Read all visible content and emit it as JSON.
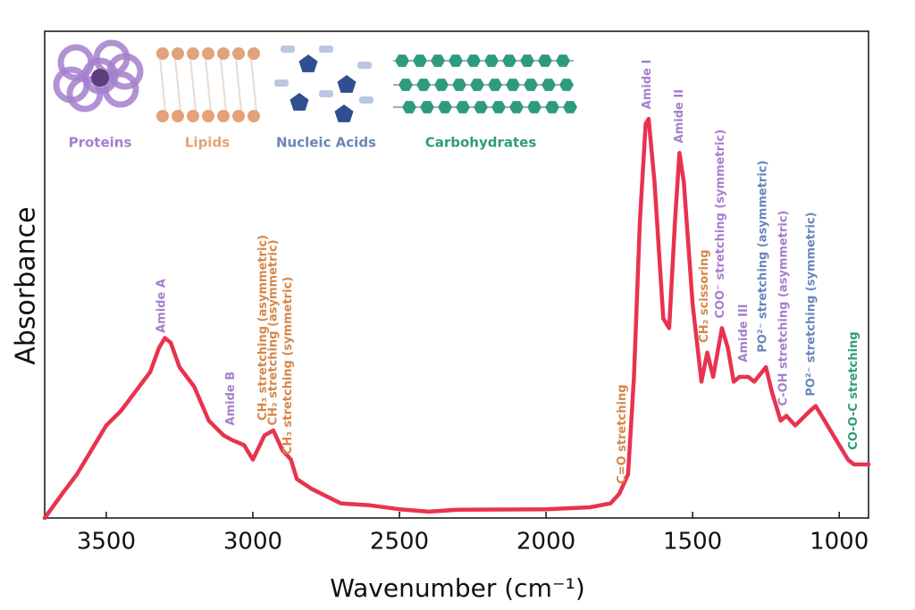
{
  "chart_data": {
    "type": "line",
    "x_label": "Wavenumber (cm⁻¹)",
    "y_label": "Absorbance",
    "xlim": [
      3710,
      900
    ],
    "ylim": [
      0,
      1
    ],
    "xticks": [
      3500,
      3000,
      2500,
      2000,
      1500,
      1000
    ],
    "x": [
      3710,
      3650,
      3600,
      3550,
      3500,
      3450,
      3400,
      3350,
      3320,
      3300,
      3280,
      3250,
      3200,
      3150,
      3100,
      3070,
      3030,
      3000,
      2960,
      2930,
      2900,
      2870,
      2850,
      2800,
      2700,
      2600,
      2500,
      2400,
      2300,
      2000,
      1850,
      1780,
      1750,
      1720,
      1700,
      1680,
      1660,
      1650,
      1630,
      1600,
      1580,
      1560,
      1545,
      1530,
      1500,
      1470,
      1450,
      1430,
      1400,
      1380,
      1360,
      1340,
      1310,
      1290,
      1250,
      1230,
      1200,
      1180,
      1150,
      1100,
      1080,
      1050,
      1000,
      970,
      950,
      920,
      900
    ],
    "series": [
      {
        "color": "#e8334f",
        "values": [
          0.0,
          0.05,
          0.09,
          0.14,
          0.19,
          0.22,
          0.26,
          0.3,
          0.35,
          0.37,
          0.36,
          0.31,
          0.27,
          0.2,
          0.17,
          0.16,
          0.15,
          0.12,
          0.17,
          0.18,
          0.14,
          0.12,
          0.08,
          0.06,
          0.03,
          0.026,
          0.018,
          0.013,
          0.017,
          0.018,
          0.022,
          0.03,
          0.05,
          0.09,
          0.29,
          0.61,
          0.81,
          0.82,
          0.69,
          0.41,
          0.39,
          0.61,
          0.75,
          0.69,
          0.44,
          0.28,
          0.34,
          0.29,
          0.39,
          0.35,
          0.28,
          0.29,
          0.29,
          0.28,
          0.31,
          0.26,
          0.2,
          0.21,
          0.19,
          0.22,
          0.23,
          0.2,
          0.15,
          0.12,
          0.11,
          0.11,
          0.11
        ]
      }
    ],
    "annotations": [
      {
        "text": "Amide A",
        "x": 3310,
        "y": 0.38,
        "color": "#a57fcc"
      },
      {
        "text": "Amide B",
        "x": 3075,
        "y": 0.19,
        "color": "#a57fcc"
      },
      {
        "text": "CH₃ stretching (asymmetric)",
        "x": 2965,
        "y": 0.2,
        "color": "#d4874a"
      },
      {
        "text": "CH₂ stretching (asymmetric)",
        "x": 2930,
        "y": 0.19,
        "color": "#d4874a"
      },
      {
        "text": "CH₃ stretching (symmetric)",
        "x": 2880,
        "y": 0.13,
        "color": "#d4874a"
      },
      {
        "text": "C=O stretching",
        "x": 1740,
        "y": 0.07,
        "color": "#d4874a"
      },
      {
        "text": "Amide I",
        "x": 1655,
        "y": 0.84,
        "color": "#a57fcc"
      },
      {
        "text": "Amide II",
        "x": 1545,
        "y": 0.77,
        "color": "#a57fcc"
      },
      {
        "text": "CH₂ scissoring",
        "x": 1460,
        "y": 0.36,
        "color": "#d4874a"
      },
      {
        "text": "COO⁻ stretching (symmetric)",
        "x": 1405,
        "y": 0.41,
        "color": "#a57fcc"
      },
      {
        "text": "Amide III",
        "x": 1325,
        "y": 0.32,
        "color": "#a57fcc"
      },
      {
        "text": "PO²⁻ stretching (asymmetric)",
        "x": 1260,
        "y": 0.34,
        "color": "#6a86b8"
      },
      {
        "text": "C-OH stretching (asymmetric)",
        "x": 1190,
        "y": 0.23,
        "color": "#a57fcc"
      },
      {
        "text": "PO²⁻ stretching (symmetric)",
        "x": 1095,
        "y": 0.25,
        "color": "#6a86b8"
      },
      {
        "text": "CO-O-C stretching",
        "x": 950,
        "y": 0.14,
        "color": "#2e9b7e"
      }
    ],
    "legend": [
      {
        "name": "Proteins",
        "color": "#a57fcc"
      },
      {
        "name": "Lipids",
        "color": "#e3a27a"
      },
      {
        "name": "Nucleic Acids",
        "color": "#6a86b8"
      },
      {
        "name": "Carbohydrates",
        "color": "#2e9b7e"
      }
    ]
  }
}
